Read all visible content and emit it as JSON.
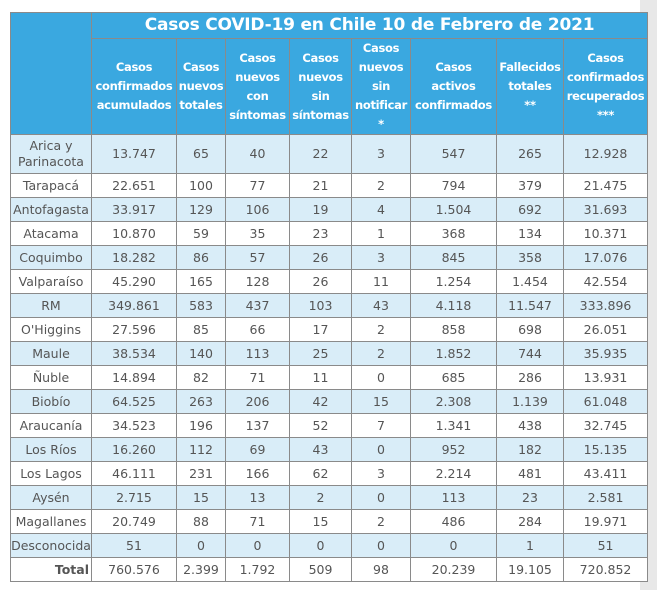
{
  "title": "Casos COVID-19 en Chile 10 de Febrero de 2021",
  "columns": [
    {
      "key": "region",
      "label": ""
    },
    {
      "key": "acumulados",
      "label_lines": [
        "Casos",
        "confirmados",
        "acumulados"
      ]
    },
    {
      "key": "nuevos_totales",
      "label_lines": [
        "Casos",
        "nuevos",
        "totales"
      ]
    },
    {
      "key": "nuevos_con_sintomas",
      "label_lines": [
        "Casos",
        "nuevos",
        "con",
        "síntomas"
      ]
    },
    {
      "key": "nuevos_sin_sintomas",
      "label_lines": [
        "Casos",
        "nuevos",
        "sin",
        "síntomas"
      ]
    },
    {
      "key": "nuevos_sin_notificar",
      "label_lines": [
        "Casos",
        "nuevos",
        "sin",
        "notificar",
        "*"
      ]
    },
    {
      "key": "activos",
      "label_lines": [
        "Casos",
        "activos",
        "confirmados"
      ]
    },
    {
      "key": "fallecidos",
      "label_lines": [
        "Fallecidos",
        "totales",
        "**"
      ]
    },
    {
      "key": "recuperados",
      "label_lines": [
        "Casos",
        "confirmados",
        "recuperados",
        "***"
      ]
    }
  ],
  "rows": [
    {
      "region_lines": [
        "Arica y",
        "Parinacota"
      ],
      "cells": [
        "13.747",
        "65",
        "40",
        "22",
        "3",
        "547",
        "265",
        "12.928"
      ]
    },
    {
      "region": "Tarapacá",
      "cells": [
        "22.651",
        "100",
        "77",
        "21",
        "2",
        "794",
        "379",
        "21.475"
      ]
    },
    {
      "region": "Antofagasta",
      "cells": [
        "33.917",
        "129",
        "106",
        "19",
        "4",
        "1.504",
        "692",
        "31.693"
      ]
    },
    {
      "region": "Atacama",
      "cells": [
        "10.870",
        "59",
        "35",
        "23",
        "1",
        "368",
        "134",
        "10.371"
      ]
    },
    {
      "region": "Coquimbo",
      "cells": [
        "18.282",
        "86",
        "57",
        "26",
        "3",
        "845",
        "358",
        "17.076"
      ]
    },
    {
      "region": "Valparaíso",
      "cells": [
        "45.290",
        "165",
        "128",
        "26",
        "11",
        "1.254",
        "1.454",
        "42.554"
      ]
    },
    {
      "region": "RM",
      "cells": [
        "349.861",
        "583",
        "437",
        "103",
        "43",
        "4.118",
        "11.547",
        "333.896"
      ]
    },
    {
      "region": "O'Higgins",
      "cells": [
        "27.596",
        "85",
        "66",
        "17",
        "2",
        "858",
        "698",
        "26.051"
      ]
    },
    {
      "region": "Maule",
      "cells": [
        "38.534",
        "140",
        "113",
        "25",
        "2",
        "1.852",
        "744",
        "35.935"
      ]
    },
    {
      "region": "Ñuble",
      "cells": [
        "14.894",
        "82",
        "71",
        "11",
        "0",
        "685",
        "286",
        "13.931"
      ]
    },
    {
      "region": "Biobío",
      "cells": [
        "64.525",
        "263",
        "206",
        "42",
        "15",
        "2.308",
        "1.139",
        "61.048"
      ]
    },
    {
      "region": "Araucanía",
      "cells": [
        "34.523",
        "196",
        "137",
        "52",
        "7",
        "1.341",
        "438",
        "32.745"
      ]
    },
    {
      "region": "Los Ríos",
      "cells": [
        "16.260",
        "112",
        "69",
        "43",
        "0",
        "952",
        "182",
        "15.135"
      ]
    },
    {
      "region": "Los Lagos",
      "cells": [
        "46.111",
        "231",
        "166",
        "62",
        "3",
        "2.214",
        "481",
        "43.411"
      ]
    },
    {
      "region": "Aysén",
      "cells": [
        "2.715",
        "15",
        "13",
        "2",
        "0",
        "113",
        "23",
        "2.581"
      ]
    },
    {
      "region": "Magallanes",
      "cells": [
        "20.749",
        "88",
        "71",
        "15",
        "2",
        "486",
        "284",
        "19.971"
      ]
    },
    {
      "region": "Desconocida",
      "cells": [
        "51",
        "0",
        "0",
        "0",
        "0",
        "0",
        "1",
        "51"
      ]
    }
  ],
  "total": {
    "region": "Total",
    "cells": [
      "760.576",
      "2.399",
      "1.792",
      "509",
      "98",
      "20.239",
      "19.105",
      "720.852"
    ]
  },
  "colors": {
    "header_bg": "#3aa8e0",
    "header_text": "#ffffff",
    "alt_row_bg": "#d9edf8",
    "cell_text": "#555555"
  }
}
